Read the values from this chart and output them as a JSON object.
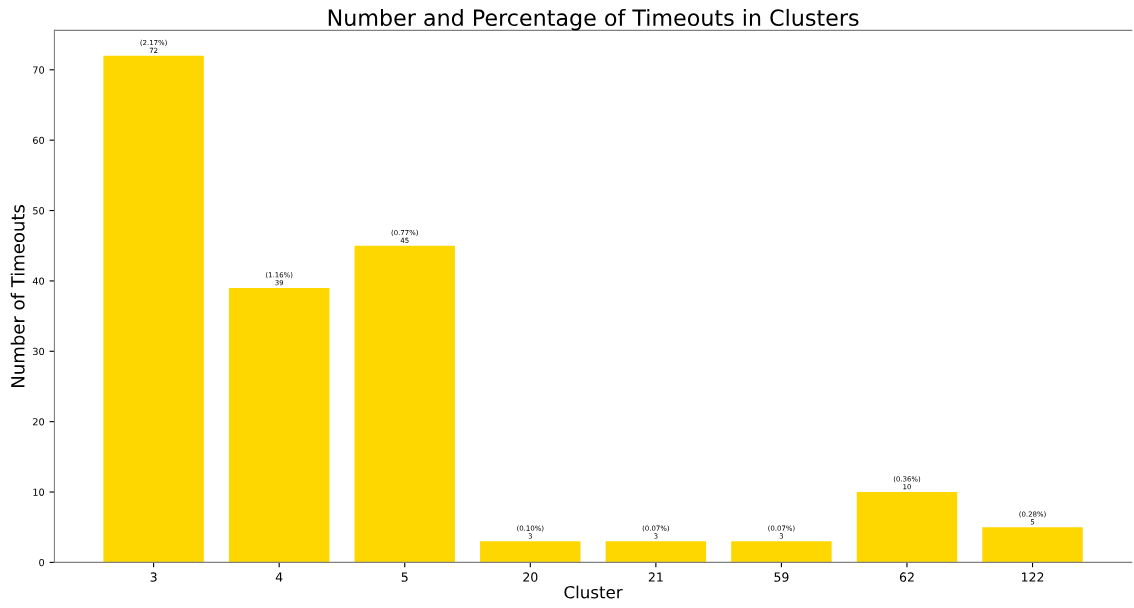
{
  "chart_data": {
    "type": "bar",
    "title": "Number and Percentage of Timeouts in Clusters",
    "xlabel": "Cluster",
    "ylabel": "Number of Timeouts",
    "categories": [
      "3",
      "4",
      "5",
      "20",
      "21",
      "59",
      "62",
      "122"
    ],
    "values": [
      72,
      39,
      45,
      3,
      3,
      3,
      10,
      5
    ],
    "value_labels": [
      "(2.17%)\n72",
      "(1.16%)\n39",
      "(0.77%)\n45",
      "(0.10%)\n3",
      "(0.07%)\n3",
      "(0.07%)\n3",
      "(0.36%)\n10",
      "(0.28%)\n5"
    ],
    "color": "#ffd700",
    "ylim": [
      0,
      75.6
    ],
    "yticks": [
      0,
      10,
      20,
      30,
      40,
      50,
      60,
      70
    ],
    "grid": false,
    "legend": false
  }
}
